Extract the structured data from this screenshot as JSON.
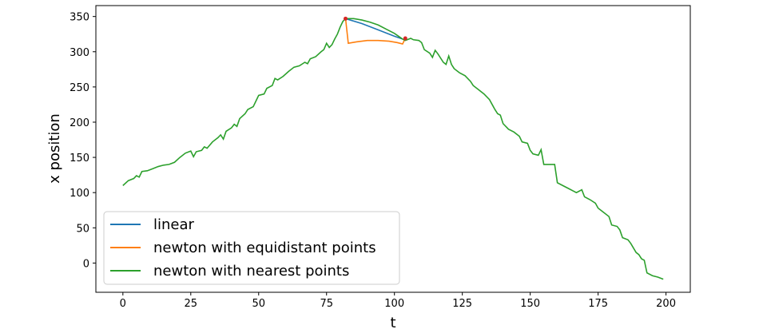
{
  "chart_data": {
    "type": "line",
    "xlabel": "t",
    "ylabel": "x position",
    "xlim": [
      -9.95,
      208.95
    ],
    "ylim": [
      -41.5,
      365.5
    ],
    "xticks": [
      0,
      25,
      50,
      75,
      100,
      125,
      150,
      175,
      200
    ],
    "yticks": [
      0,
      50,
      100,
      150,
      200,
      250,
      300,
      350
    ],
    "legend": "lower left",
    "series": [
      {
        "name": "linear",
        "color": "#1f77b4",
        "x": [
          82,
          88,
          94,
          100,
          103
        ],
        "values": [
          347,
          340,
          331,
          322,
          318
        ]
      },
      {
        "name": "newton with equidistant points",
        "color": "#ff7f0e",
        "x": [
          82,
          83,
          86,
          90,
          94,
          98,
          101,
          103,
          104
        ],
        "values": [
          347,
          312,
          314,
          316,
          316,
          315,
          313,
          311,
          319
        ]
      },
      {
        "name": "newton with nearest points",
        "color": "#2ca02c",
        "x": [
          0,
          2,
          4,
          5,
          6,
          7,
          9,
          11,
          13,
          15,
          17,
          19,
          21,
          23,
          25,
          26,
          27,
          29,
          30,
          31,
          33,
          35,
          36,
          37,
          38,
          40,
          41,
          42,
          43,
          45,
          46,
          48,
          49,
          50,
          52,
          53,
          55,
          56,
          57,
          59,
          61,
          63,
          65,
          67,
          68,
          69,
          71,
          73,
          74,
          75,
          76,
          77,
          78,
          79,
          80,
          81,
          82,
          85,
          88,
          91,
          94,
          97,
          100,
          103,
          104,
          106,
          107,
          109,
          110,
          111,
          113,
          114,
          115,
          116,
          118,
          119,
          120,
          121,
          122,
          124,
          126,
          128,
          129,
          131,
          133,
          135,
          136,
          137,
          138,
          139,
          140,
          142,
          144,
          146,
          147,
          149,
          150,
          151,
          153,
          154,
          155,
          159,
          160,
          162,
          164,
          166,
          167,
          169,
          170,
          172,
          174,
          175,
          177,
          179,
          180,
          182,
          183,
          184,
          186,
          187,
          189,
          190,
          191,
          192,
          193,
          195,
          197,
          199
        ],
        "values": [
          110,
          117,
          120,
          124,
          122,
          130,
          131,
          134,
          137,
          139,
          140,
          143,
          150,
          156,
          159,
          151,
          158,
          160,
          165,
          163,
          172,
          178,
          182,
          176,
          187,
          192,
          197,
          194,
          205,
          212,
          218,
          222,
          230,
          238,
          240,
          248,
          252,
          262,
          260,
          265,
          272,
          278,
          280,
          285,
          283,
          290,
          293,
          300,
          303,
          312,
          306,
          310,
          318,
          325,
          335,
          343,
          347,
          347,
          345,
          342,
          338,
          332,
          326,
          318,
          316,
          319,
          317,
          316,
          313,
          303,
          298,
          292,
          302,
          297,
          285,
          282,
          294,
          282,
          276,
          270,
          266,
          258,
          252,
          246,
          240,
          232,
          225,
          218,
          212,
          210,
          198,
          190,
          186,
          180,
          172,
          170,
          160,
          155,
          153,
          161,
          140,
          140,
          114,
          110,
          106,
          102,
          100,
          104,
          94,
          90,
          85,
          78,
          72,
          66,
          54,
          52,
          47,
          36,
          33,
          28,
          15,
          12,
          6,
          4,
          -14,
          -18,
          -20,
          -23
        ]
      }
    ],
    "markers": {
      "color": "#d62728",
      "x": [
        82,
        104
      ],
      "values": [
        347,
        319
      ]
    }
  }
}
